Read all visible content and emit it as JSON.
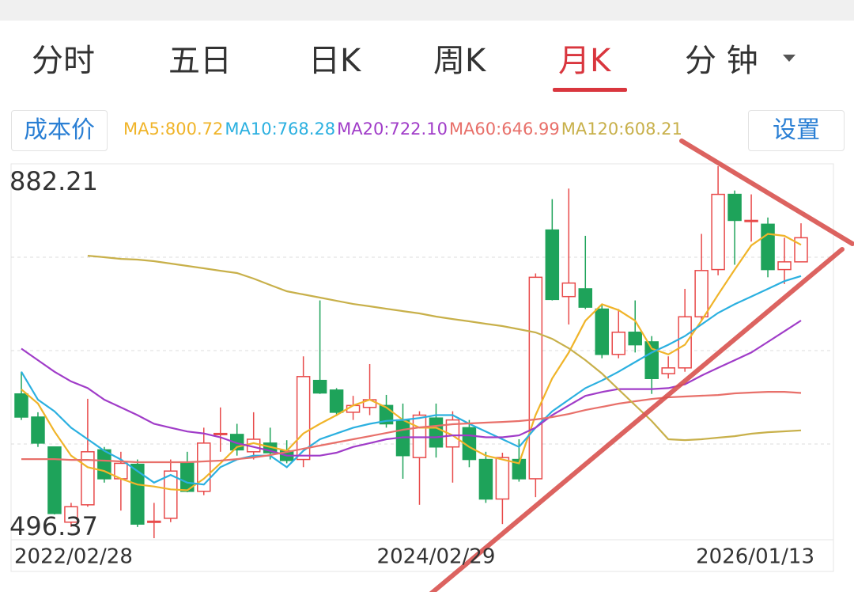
{
  "tabs": [
    "分时",
    "五日",
    "日K",
    "周K",
    "月K",
    "分 钟"
  ],
  "cost_button": "成本价",
  "settings_button": "设置",
  "chart_data": {
    "type": "candlestick",
    "categories": [
      "2022/02/28",
      null,
      null,
      null,
      null,
      null,
      null,
      null,
      null,
      null,
      null,
      null,
      null,
      null,
      null,
      null,
      null,
      null,
      null,
      null,
      null,
      null,
      null,
      null,
      null,
      "2024/02/29",
      null,
      null,
      null,
      null,
      null,
      null,
      null,
      null,
      null,
      null,
      null,
      null,
      null,
      null,
      null,
      null,
      null,
      null,
      null,
      null,
      null,
      "2026/01/13"
    ],
    "open": [
      646,
      622,
      591,
      513,
      531,
      588,
      558,
      573,
      513,
      517,
      574,
      545,
      604,
      604,
      586,
      595,
      587,
      578,
      660,
      650,
      627,
      632,
      634,
      619,
      580,
      621,
      591,
      611,
      578,
      537,
      578,
      558,
      816,
      747,
      755,
      734,
      687,
      710,
      700,
      667,
      673,
      726,
      775,
      853,
      825,
      822,
      775,
      783
    ],
    "high": [
      669,
      627,
      591,
      533,
      641,
      591,
      586,
      578,
      533,
      578,
      586,
      611,
      632,
      615,
      627,
      611,
      598,
      685,
      743,
      652,
      644,
      677,
      645,
      636,
      628,
      636,
      628,
      619,
      586,
      585,
      599,
      771,
      848,
      859,
      810,
      738,
      734,
      743,
      706,
      685,
      755,
      812,
      882.21,
      857,
      853,
      829,
      808,
      823
    ],
    "low": [
      619,
      591,
      521,
      508,
      529,
      554,
      525,
      508,
      496.37,
      513,
      544,
      541,
      586,
      582,
      578,
      578,
      574,
      570,
      646,
      623,
      619,
      624,
      611,
      558,
      531,
      580,
      554,
      570,
      533,
      511,
      555,
      539,
      743,
      718,
      734,
      683,
      683,
      689,
      646,
      662,
      669,
      722,
      769,
      780,
      804,
      767,
      760,
      783
    ],
    "close": [
      622,
      595,
      522,
      529,
      586,
      558,
      574,
      511,
      514,
      566,
      545,
      595,
      605,
      588,
      599,
      585,
      577,
      664,
      647,
      627,
      634,
      640,
      615,
      582,
      624,
      591,
      619,
      578,
      537,
      580,
      558,
      767,
      744,
      761,
      736,
      687,
      710,
      697,
      662,
      673,
      726,
      774,
      853,
      826,
      826,
      775,
      783,
      808
    ],
    "up_color": "#e84a4a",
    "down_color": "#1ea35a",
    "ylim": [
      496.37,
      882.21
    ],
    "series": [
      {
        "name": "MA5:800.72",
        "color": "#f0b429",
        "values": [
          650.7,
          636,
          607,
          582,
          570,
          566,
          558,
          552,
          550,
          547,
          546,
          558,
          574,
          591,
          595,
          591,
          587,
          605,
          615,
          624,
          634,
          640,
          632,
          619,
          611,
          611,
          603,
          591,
          582,
          578,
          574,
          624,
          662,
          689,
          722,
          739,
          733,
          722,
          693,
          687,
          697,
          722,
          749,
          775,
          800,
          812,
          810,
          800.72
        ]
      },
      {
        "name": "MA10:768.28",
        "color": "#2bb0e0",
        "values": [
          669,
          640,
          628,
          611,
          599,
          587,
          578,
          566,
          554,
          562,
          554,
          552,
          570,
          578,
          582,
          582,
          570,
          587,
          599,
          605,
          611,
          615,
          618,
          619,
          621,
          624,
          624,
          615,
          607,
          599,
          591,
          611,
          628,
          640,
          652,
          660,
          669,
          679,
          689,
          697,
          706,
          718,
          730,
          739,
          747,
          755,
          763,
          768.28
        ]
      },
      {
        "name": "MA20:722.10",
        "color": "#a03cc8",
        "values": [
          693,
          681,
          669,
          659,
          652,
          640,
          632,
          624,
          615,
          611,
          607,
          605,
          601,
          595,
          591,
          587,
          582,
          582,
          582,
          585,
          591,
          595,
          599,
          601,
          601,
          601,
          603,
          603,
          601,
          601,
          603,
          611,
          624,
          634,
          644,
          648,
          651,
          651,
          651,
          652,
          656,
          665,
          673,
          681,
          689,
          700,
          711,
          722.1
        ]
      },
      {
        "name": "MA60:646.99",
        "color": "#e8706a",
        "values": [
          578.4,
          578.4,
          578.4,
          577.6,
          577.6,
          576.8,
          576,
          575.2,
          575.2,
          575.2,
          575.2,
          576,
          576.8,
          578.4,
          580.1,
          582.6,
          585.8,
          589.1,
          592.4,
          595.7,
          599,
          602.2,
          605.5,
          608.8,
          611.3,
          612.9,
          614.6,
          615.4,
          616.2,
          617,
          617.9,
          619.5,
          622,
          625.2,
          629.3,
          632.6,
          635.9,
          638.4,
          640.8,
          642.5,
          643.3,
          644.1,
          644.9,
          646.6,
          647.4,
          648.2,
          648.2,
          646.99
        ]
      },
      {
        "name": "MA120:608.21",
        "color": "#c8b04a",
        "values": [
          null,
          null,
          null,
          null,
          789.4,
          787.8,
          786.1,
          785.3,
          783.7,
          781.2,
          778.8,
          776.3,
          773.8,
          771.4,
          765.6,
          759,
          752.5,
          749.2,
          745.9,
          742.6,
          739.3,
          736.9,
          734.4,
          731.9,
          729.5,
          726.2,
          723.7,
          721.3,
          718.8,
          716.4,
          713.1,
          709.8,
          703.2,
          693.4,
          681.1,
          667.1,
          650.7,
          634.3,
          617.9,
          599,
          598.1,
          599,
          600.6,
          602.2,
          604.7,
          606.3,
          607.2,
          608.21
        ]
      }
    ]
  }
}
